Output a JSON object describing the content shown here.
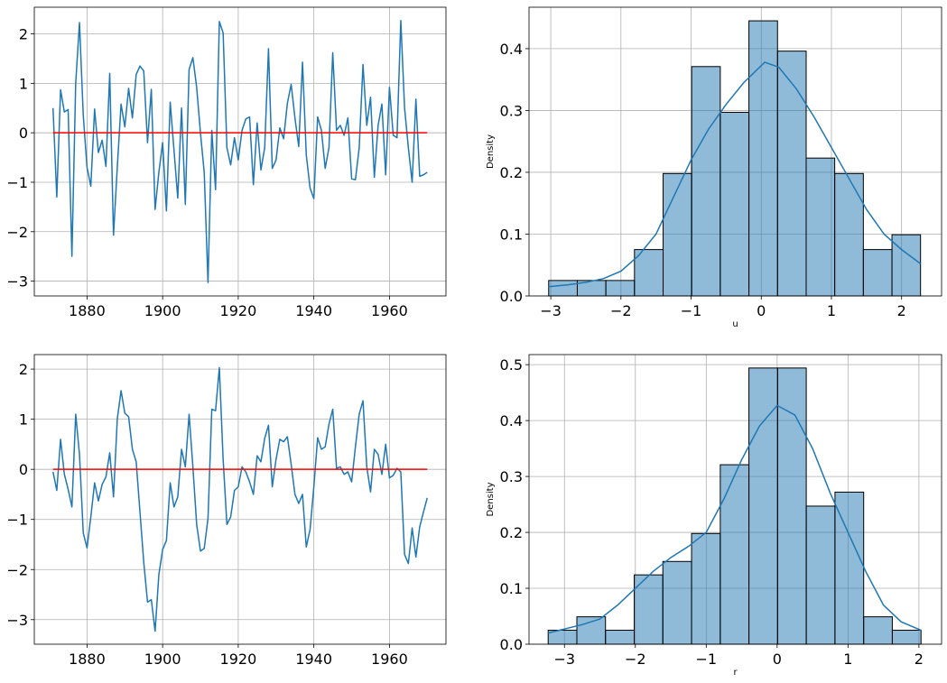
{
  "chart_data": [
    {
      "type": "line",
      "x": [
        1871,
        1872,
        1873,
        1874,
        1875,
        1876,
        1877,
        1878,
        1879,
        1880,
        1881,
        1882,
        1883,
        1884,
        1885,
        1886,
        1887,
        1888,
        1889,
        1890,
        1891,
        1892,
        1893,
        1894,
        1895,
        1896,
        1897,
        1898,
        1899,
        1900,
        1901,
        1902,
        1903,
        1904,
        1905,
        1906,
        1907,
        1908,
        1909,
        1910,
        1911,
        1912,
        1913,
        1914,
        1915,
        1916,
        1917,
        1918,
        1919,
        1920,
        1921,
        1922,
        1923,
        1924,
        1925,
        1926,
        1927,
        1928,
        1929,
        1930,
        1931,
        1932,
        1933,
        1934,
        1935,
        1936,
        1937,
        1938,
        1939,
        1940,
        1941,
        1942,
        1943,
        1944,
        1945,
        1946,
        1947,
        1948,
        1949,
        1950,
        1951,
        1952,
        1953,
        1954,
        1955,
        1956,
        1957,
        1958,
        1959,
        1960,
        1961,
        1962,
        1963,
        1964,
        1965,
        1966,
        1967,
        1968,
        1969,
        1970
      ],
      "series": [
        {
          "color": "#1f77b4",
          "values": [
            0.5,
            -1.3,
            0.87,
            0.42,
            0.47,
            -2.5,
            1.0,
            2.23,
            0.35,
            -0.7,
            -1.08,
            0.48,
            -0.4,
            -0.15,
            -0.68,
            1.2,
            -2.07,
            -0.7,
            0.58,
            0.12,
            0.9,
            0.3,
            1.18,
            1.35,
            1.25,
            -0.2,
            0.88,
            -1.55,
            -0.8,
            -0.2,
            -1.58,
            0.62,
            -0.35,
            -1.32,
            0.5,
            -1.45,
            1.28,
            1.52,
            0.92,
            0.0,
            -0.8,
            -3.03,
            0.05,
            -1.15,
            2.25,
            2.02,
            -0.3,
            -0.65,
            -0.1,
            -0.55,
            0.05,
            0.28,
            0.32,
            -1.05,
            0.2,
            -0.75,
            -0.3,
            1.7,
            -0.72,
            -0.55,
            0.1,
            -0.12,
            0.6,
            0.98,
            0.3,
            -0.28,
            1.43,
            -0.45,
            -1.12,
            -1.33,
            0.32,
            0.05,
            -0.72,
            -0.3,
            1.62,
            0.05,
            0.15,
            -0.05,
            0.3,
            -0.93,
            -0.95,
            -0.3,
            1.38,
            0.15,
            0.72,
            -0.9,
            0.15,
            0.58,
            -0.85,
            0.92,
            -0.05,
            -0.1,
            2.27,
            0.5,
            -0.3,
            -1.0,
            0.68,
            -0.88,
            -0.85,
            -0.8
          ]
        },
        {
          "color": "#ff0000",
          "x": [
            1871,
            1970
          ],
          "values": [
            0,
            0
          ]
        }
      ],
      "xlim": [
        1866.05,
        1974.95
      ],
      "ylim": [
        -3.3,
        2.54
      ],
      "xticks": [
        1880,
        1900,
        1920,
        1940,
        1960
      ],
      "yticks": [
        {
          "value": -3,
          "label": "−3"
        },
        {
          "value": -2,
          "label": "−2"
        },
        {
          "value": -1,
          "label": "−1"
        },
        0,
        1,
        2
      ],
      "grid": true
    },
    {
      "type": "histogram",
      "xlabel": "u",
      "ylabel": "Density",
      "color": "#1f77b4",
      "bins": [
        -3.03,
        -2.622,
        -2.215,
        -1.807,
        -1.399,
        -0.992,
        -0.584,
        -0.176,
        0.232,
        0.64,
        1.047,
        1.455,
        1.863,
        2.27
      ],
      "values": [
        0.025,
        0.025,
        0.025,
        0.075,
        0.198,
        0.371,
        0.297,
        0.445,
        0.396,
        0.223,
        0.198,
        0.075,
        0.099
      ],
      "kde": {
        "x": [
          -3.03,
          -2.75,
          -2.5,
          -2.25,
          -2.0,
          -1.75,
          -1.5,
          -1.25,
          -1.0,
          -0.75,
          -0.5,
          -0.25,
          0.05,
          0.25,
          0.5,
          0.75,
          1.0,
          1.25,
          1.5,
          1.75,
          2.0,
          2.27
        ],
        "values": [
          0.015,
          0.018,
          0.022,
          0.028,
          0.04,
          0.065,
          0.1,
          0.16,
          0.22,
          0.27,
          0.31,
          0.345,
          0.378,
          0.37,
          0.335,
          0.29,
          0.24,
          0.19,
          0.14,
          0.1,
          0.075,
          0.052
        ]
      },
      "xlim": [
        -3.31,
        2.57
      ],
      "ylim": [
        0,
        0.467
      ],
      "xticks": [
        {
          "value": -3,
          "label": "−3"
        },
        {
          "value": -2,
          "label": "−2"
        },
        {
          "value": -1,
          "label": "−1"
        },
        0,
        1,
        2
      ],
      "yticks": [
        {
          "value": 0,
          "label": "0.0"
        },
        0.1,
        0.2,
        0.3,
        0.4
      ],
      "grid": true
    },
    {
      "type": "line",
      "x": [
        1871,
        1872,
        1873,
        1874,
        1875,
        1876,
        1877,
        1878,
        1879,
        1880,
        1881,
        1882,
        1883,
        1884,
        1885,
        1886,
        1887,
        1888,
        1889,
        1890,
        1891,
        1892,
        1893,
        1894,
        1895,
        1896,
        1897,
        1898,
        1899,
        1900,
        1901,
        1902,
        1903,
        1904,
        1905,
        1906,
        1907,
        1908,
        1909,
        1910,
        1911,
        1912,
        1913,
        1914,
        1915,
        1916,
        1917,
        1918,
        1919,
        1920,
        1921,
        1922,
        1923,
        1924,
        1925,
        1926,
        1927,
        1928,
        1929,
        1930,
        1931,
        1932,
        1933,
        1934,
        1935,
        1936,
        1937,
        1938,
        1939,
        1940,
        1941,
        1942,
        1943,
        1944,
        1945,
        1946,
        1947,
        1948,
        1949,
        1950,
        1951,
        1952,
        1953,
        1954,
        1955,
        1956,
        1957,
        1958,
        1959,
        1960,
        1961,
        1962,
        1963,
        1964,
        1965,
        1966,
        1967,
        1968,
        1969,
        1970
      ],
      "series": [
        {
          "color": "#1f77b4",
          "values": [
            -0.05,
            -0.42,
            0.6,
            -0.1,
            -0.4,
            -0.75,
            1.1,
            0.3,
            -1.27,
            -1.57,
            -0.95,
            -0.27,
            -0.63,
            -0.3,
            -0.15,
            0.33,
            -0.55,
            1.0,
            1.57,
            1.12,
            1.05,
            0.4,
            0.15,
            -0.85,
            -1.85,
            -2.65,
            -2.6,
            -3.23,
            -2.1,
            -1.6,
            -1.42,
            -0.27,
            -0.75,
            -0.55,
            0.4,
            0.05,
            1.1,
            0.05,
            -1.1,
            -1.63,
            -1.58,
            -0.98,
            1.2,
            1.17,
            2.03,
            0.2,
            -1.1,
            -0.95,
            -0.42,
            -0.35,
            0.05,
            -0.05,
            -0.25,
            -0.5,
            0.27,
            0.15,
            0.62,
            0.88,
            -0.35,
            0.2,
            0.6,
            0.55,
            0.65,
            0.1,
            -0.5,
            -0.68,
            -0.5,
            -1.55,
            -1.2,
            -0.35,
            0.63,
            0.4,
            0.45,
            0.9,
            1.2,
            0.02,
            0.05,
            -0.1,
            -0.05,
            -0.25,
            0.45,
            1.1,
            1.37,
            0.05,
            -0.45,
            0.4,
            0.3,
            -0.1,
            0.5,
            -0.17,
            -0.12,
            0.02,
            -0.05,
            -1.7,
            -1.88,
            -1.17,
            -1.75,
            -1.15,
            -0.85,
            -0.57
          ]
        },
        {
          "color": "#ff0000",
          "x": [
            1871,
            1970
          ],
          "values": [
            0,
            0
          ]
        }
      ],
      "xlim": [
        1866.05,
        1974.95
      ],
      "ylim": [
        -3.49,
        2.29
      ],
      "xticks": [
        1880,
        1900,
        1920,
        1940,
        1960
      ],
      "yticks": [
        {
          "value": -3,
          "label": "−3"
        },
        {
          "value": -2,
          "label": "−2"
        },
        {
          "value": -1,
          "label": "−1"
        },
        0,
        1,
        2
      ],
      "grid": true
    },
    {
      "type": "histogram",
      "xlabel": "r",
      "ylabel": "Density",
      "color": "#1f77b4",
      "bins": [
        -3.23,
        -2.825,
        -2.421,
        -2.016,
        -1.612,
        -1.207,
        -0.802,
        -0.398,
        0.007,
        0.411,
        0.816,
        1.221,
        1.625,
        2.03
      ],
      "values": [
        0.025,
        0.049,
        0.025,
        0.124,
        0.148,
        0.198,
        0.321,
        0.494,
        0.494,
        0.247,
        0.272,
        0.049,
        0.025
      ],
      "kde": {
        "x": [
          -3.23,
          -2.75,
          -2.5,
          -2.25,
          -2.0,
          -1.75,
          -1.5,
          -1.25,
          -1.0,
          -0.75,
          -0.5,
          -0.25,
          0,
          0.25,
          0.5,
          0.75,
          1.0,
          1.25,
          1.5,
          1.75,
          2.03
        ],
        "values": [
          0.02,
          0.035,
          0.045,
          0.07,
          0.1,
          0.13,
          0.155,
          0.175,
          0.2,
          0.26,
          0.33,
          0.39,
          0.427,
          0.41,
          0.35,
          0.27,
          0.2,
          0.13,
          0.07,
          0.04,
          0.025
        ]
      },
      "xlim": [
        -3.5,
        2.32
      ],
      "ylim": [
        0,
        0.518
      ],
      "xticks": [
        {
          "value": -3,
          "label": "−3"
        },
        {
          "value": -2,
          "label": "−2"
        },
        {
          "value": -1,
          "label": "−1"
        },
        0,
        1,
        2
      ],
      "yticks": [
        {
          "value": 0,
          "label": "0.0"
        },
        0.1,
        0.2,
        0.3,
        0.4,
        0.5
      ],
      "grid": true
    }
  ]
}
